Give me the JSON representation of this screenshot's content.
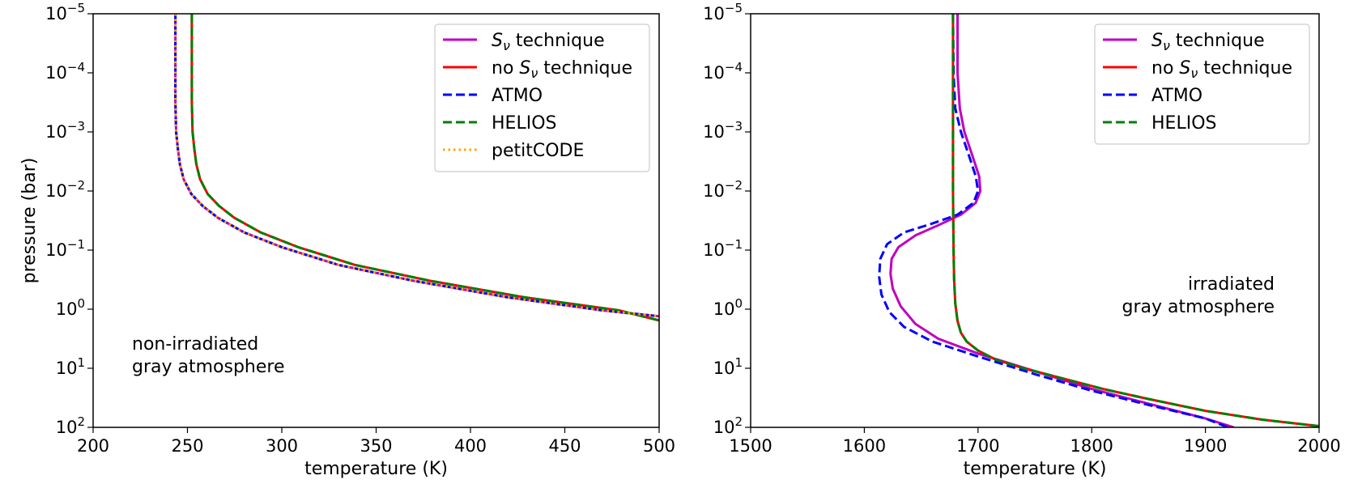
{
  "chart_data": [
    {
      "type": "line",
      "id": "left",
      "xlabel": "temperature (K)",
      "ylabel": "pressure (bar)",
      "xlim": [
        200,
        500
      ],
      "ylim_log10": [
        -5,
        2
      ],
      "y_inverted": true,
      "y_scale": "log",
      "xticks": [
        200,
        250,
        300,
        350,
        400,
        450,
        500
      ],
      "yticks_exp": [
        "−5",
        "−4",
        "−3",
        "−2",
        "−1",
        "0",
        "1",
        "2"
      ],
      "ytick_base": "10",
      "annotation": [
        "non-irradiated",
        "gray atmosphere"
      ],
      "legend_loc": "upper right",
      "series": [
        {
          "name": "Sν technique",
          "legend_prefix": "",
          "legend_symbol": "S",
          "legend_sub": "ν",
          "legend_suffix": " technique",
          "color": "#bf00bf",
          "dash": "solid",
          "points": [
            [
              243.6,
              -5
            ],
            [
              243.6,
              -3.5
            ],
            [
              244,
              -3
            ],
            [
              245,
              -2.7
            ],
            [
              246,
              -2.45
            ],
            [
              248,
              -2.2
            ],
            [
              252,
              -1.95
            ],
            [
              258,
              -1.75
            ],
            [
              266,
              -1.55
            ],
            [
              280,
              -1.3
            ],
            [
              300,
              -1.05
            ],
            [
              330,
              -0.75
            ],
            [
              370,
              -0.48
            ],
            [
              420,
              -0.2
            ],
            [
              470,
              0.02
            ],
            [
              500,
              0.12
            ]
          ]
        },
        {
          "name": "no Sν technique",
          "legend_prefix": "no ",
          "legend_symbol": "S",
          "legend_sub": "ν",
          "legend_suffix": " technique",
          "color": "#ff0000",
          "dash": "solid",
          "points": [
            [
              252.3,
              -5
            ],
            [
              252.3,
              -3.5
            ],
            [
              252.7,
              -3
            ],
            [
              253.7,
              -2.7
            ],
            [
              254.7,
              -2.45
            ],
            [
              256.7,
              -2.2
            ],
            [
              260.7,
              -1.95
            ],
            [
              266.7,
              -1.75
            ],
            [
              274.7,
              -1.55
            ],
            [
              288.7,
              -1.3
            ],
            [
              308.7,
              -1.05
            ],
            [
              338.7,
              -0.75
            ],
            [
              378.7,
              -0.48
            ],
            [
              428.7,
              -0.2
            ],
            [
              478.7,
              0.02
            ],
            [
              500,
              0.19
            ]
          ]
        },
        {
          "name": "ATMO",
          "legend_prefix": "",
          "legend_symbol": "",
          "legend_sub": "",
          "legend_suffix": "ATMO",
          "color": "#0000ff",
          "dash": "dashed",
          "points": [
            [
              243.6,
              -5
            ],
            [
              243.6,
              -3.5
            ],
            [
              244,
              -3
            ],
            [
              245,
              -2.7
            ],
            [
              246,
              -2.45
            ],
            [
              248,
              -2.2
            ],
            [
              252,
              -1.95
            ],
            [
              258,
              -1.75
            ],
            [
              266,
              -1.55
            ],
            [
              280,
              -1.3
            ],
            [
              300,
              -1.05
            ],
            [
              330,
              -0.75
            ],
            [
              370,
              -0.48
            ],
            [
              420,
              -0.2
            ],
            [
              470,
              0.02
            ],
            [
              500,
              0.12
            ]
          ]
        },
        {
          "name": "HELIOS",
          "legend_prefix": "",
          "legend_symbol": "",
          "legend_sub": "",
          "legend_suffix": "HELIOS",
          "color": "#008000",
          "dash": "dashed",
          "points": [
            [
              252.3,
              -5
            ],
            [
              252.3,
              -3.5
            ],
            [
              252.7,
              -3
            ],
            [
              253.7,
              -2.7
            ],
            [
              254.7,
              -2.45
            ],
            [
              256.7,
              -2.2
            ],
            [
              260.7,
              -1.95
            ],
            [
              266.7,
              -1.75
            ],
            [
              274.7,
              -1.55
            ],
            [
              288.7,
              -1.3
            ],
            [
              308.7,
              -1.05
            ],
            [
              338.7,
              -0.75
            ],
            [
              378.7,
              -0.48
            ],
            [
              428.7,
              -0.2
            ],
            [
              478.7,
              0.02
            ],
            [
              500,
              0.19
            ]
          ]
        },
        {
          "name": "petitCODE",
          "legend_prefix": "",
          "legend_symbol": "",
          "legend_sub": "",
          "legend_suffix": "petitCODE",
          "color": "#ffa500",
          "dash": "dotted",
          "points": [
            [
              243.6,
              -5
            ],
            [
              243.6,
              -3.5
            ],
            [
              244,
              -3
            ],
            [
              245,
              -2.7
            ],
            [
              246,
              -2.45
            ],
            [
              248,
              -2.2
            ],
            [
              252,
              -1.95
            ],
            [
              258,
              -1.75
            ],
            [
              266,
              -1.55
            ],
            [
              280,
              -1.3
            ],
            [
              300,
              -1.05
            ],
            [
              330,
              -0.75
            ],
            [
              370,
              -0.48
            ],
            [
              420,
              -0.2
            ],
            [
              470,
              0.02
            ],
            [
              500,
              0.12
            ]
          ]
        }
      ]
    },
    {
      "type": "line",
      "id": "right",
      "xlabel": "temperature (K)",
      "ylabel": "",
      "xlim": [
        1500,
        2000
      ],
      "ylim_log10": [
        -5,
        2
      ],
      "y_inverted": true,
      "y_scale": "log",
      "xticks": [
        1500,
        1600,
        1700,
        1800,
        1900,
        2000
      ],
      "yticks_exp": [
        "−5",
        "−4",
        "−3",
        "−2",
        "−1",
        "0",
        "1",
        "2"
      ],
      "ytick_base": "10",
      "annotation": [
        "irradiated",
        "gray atmosphere"
      ],
      "legend_loc": "upper right",
      "series": [
        {
          "name": "Sν technique",
          "legend_prefix": "",
          "legend_symbol": "S",
          "legend_sub": "ν",
          "legend_suffix": " technique",
          "color": "#bf00bf",
          "dash": "solid",
          "points": [
            [
              1682,
              -5
            ],
            [
              1682,
              -4
            ],
            [
              1684,
              -3.4
            ],
            [
              1688,
              -3
            ],
            [
              1695,
              -2.6
            ],
            [
              1701,
              -2.25
            ],
            [
              1702,
              -2
            ],
            [
              1698,
              -1.8
            ],
            [
              1685,
              -1.6
            ],
            [
              1665,
              -1.42
            ],
            [
              1645,
              -1.25
            ],
            [
              1630,
              -1.05
            ],
            [
              1624,
              -0.85
            ],
            [
              1623,
              -0.6
            ],
            [
              1625,
              -0.35
            ],
            [
              1632,
              -0.05
            ],
            [
              1645,
              0.25
            ],
            [
              1665,
              0.5
            ],
            [
              1700,
              0.75
            ],
            [
              1750,
              1.05
            ],
            [
              1800,
              1.35
            ],
            [
              1850,
              1.6
            ],
            [
              1900,
              1.85
            ],
            [
              1925,
              2.0
            ]
          ]
        },
        {
          "name": "no Sν technique",
          "legend_prefix": "no ",
          "legend_symbol": "S",
          "legend_sub": "ν",
          "legend_suffix": " technique",
          "color": "#ff0000",
          "dash": "solid",
          "points": [
            [
              1678,
              -5
            ],
            [
              1678,
              -2
            ],
            [
              1678.5,
              -1
            ],
            [
              1679,
              -0.5
            ],
            [
              1680,
              -0.1
            ],
            [
              1682,
              0.2
            ],
            [
              1685,
              0.4
            ],
            [
              1690,
              0.55
            ],
            [
              1700,
              0.7
            ],
            [
              1715,
              0.85
            ],
            [
              1740,
              1.0
            ],
            [
              1770,
              1.15
            ],
            [
              1810,
              1.35
            ],
            [
              1850,
              1.52
            ],
            [
              1900,
              1.72
            ],
            [
              1950,
              1.87
            ],
            [
              2000,
              1.98
            ]
          ]
        },
        {
          "name": "ATMO",
          "legend_prefix": "",
          "legend_symbol": "",
          "legend_sub": "",
          "legend_suffix": "ATMO",
          "color": "#0000ff",
          "dash": "dashed",
          "points": [
            [
              1678,
              -5
            ],
            [
              1678.5,
              -4
            ],
            [
              1680,
              -3.4
            ],
            [
              1685,
              -3
            ],
            [
              1692,
              -2.6
            ],
            [
              1698,
              -2.25
            ],
            [
              1700,
              -2
            ],
            [
              1696,
              -1.8
            ],
            [
              1682,
              -1.6
            ],
            [
              1660,
              -1.45
            ],
            [
              1635,
              -1.3
            ],
            [
              1620,
              -1.1
            ],
            [
              1614,
              -0.85
            ],
            [
              1613,
              -0.55
            ],
            [
              1615,
              -0.25
            ],
            [
              1622,
              0.05
            ],
            [
              1635,
              0.3
            ],
            [
              1660,
              0.55
            ],
            [
              1700,
              0.8
            ],
            [
              1750,
              1.1
            ],
            [
              1800,
              1.38
            ],
            [
              1850,
              1.62
            ],
            [
              1900,
              1.85
            ],
            [
              1920,
              2.0
            ]
          ]
        },
        {
          "name": "HELIOS",
          "legend_prefix": "",
          "legend_symbol": "",
          "legend_sub": "",
          "legend_suffix": "HELIOS",
          "color": "#008000",
          "dash": "dashed",
          "points": [
            [
              1678,
              -5
            ],
            [
              1678,
              -2
            ],
            [
              1678.5,
              -1
            ],
            [
              1679,
              -0.5
            ],
            [
              1680,
              -0.1
            ],
            [
              1682,
              0.2
            ],
            [
              1685,
              0.4
            ],
            [
              1690,
              0.55
            ],
            [
              1700,
              0.7
            ],
            [
              1715,
              0.85
            ],
            [
              1740,
              1.0
            ],
            [
              1770,
              1.15
            ],
            [
              1810,
              1.35
            ],
            [
              1850,
              1.52
            ],
            [
              1900,
              1.72
            ],
            [
              1950,
              1.87
            ],
            [
              2000,
              1.98
            ]
          ]
        }
      ]
    }
  ]
}
